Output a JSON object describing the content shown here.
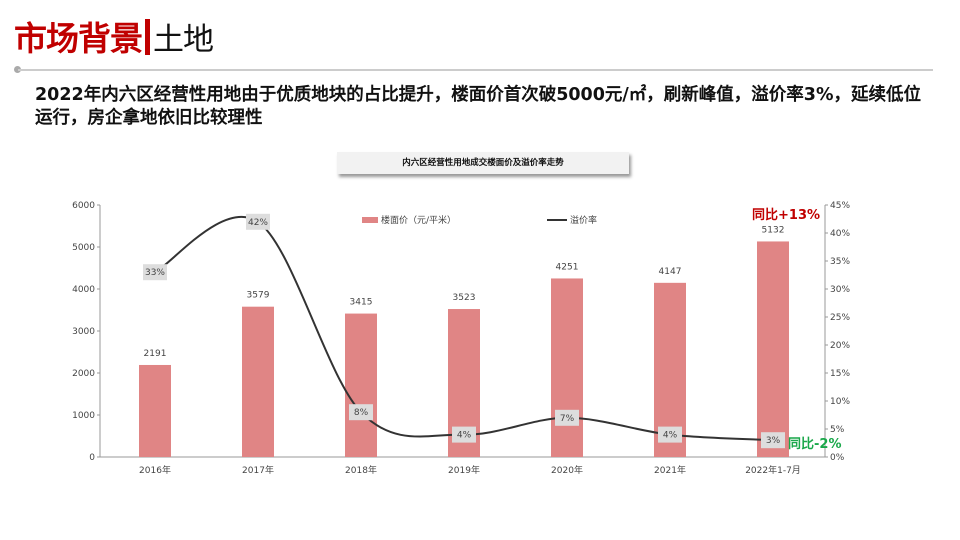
{
  "header": {
    "title": "市场背景",
    "subtitle": "土地"
  },
  "headline": "2022年内六区经营性用地由于优质地块的占比提升，楼面价首次破5000元/㎡，刷新峰值，溢价率3%，延续低位运行，房企拿地依旧比较理性",
  "chart_data": {
    "type": "bar+line",
    "title": "内六区经营性用地成交楼面价及溢价率走势",
    "categories": [
      "2016年",
      "2017年",
      "2018年",
      "2019年",
      "2020年",
      "2021年",
      "2022年1-7月"
    ],
    "series": [
      {
        "name": "楼面价（元/平米）",
        "type": "bar",
        "axis": "left",
        "values": [
          2191,
          3579,
          3415,
          3523,
          4251,
          4147,
          5132
        ],
        "color": "#e08585"
      },
      {
        "name": "溢价率",
        "type": "line",
        "axis": "right",
        "values": [
          33,
          42,
          8,
          4,
          7,
          4,
          3
        ],
        "labels": [
          "33%",
          "42%",
          "8%",
          "4%",
          "7%",
          "4%",
          "3%"
        ],
        "color": "#333333"
      }
    ],
    "left_axis": {
      "range": [
        0,
        6000
      ],
      "ticks": [
        0,
        1000,
        2000,
        3000,
        4000,
        5000,
        6000
      ]
    },
    "right_axis": {
      "range": [
        0,
        45
      ],
      "ticks": [
        "0%",
        "5%",
        "10%",
        "15%",
        "20%",
        "25%",
        "30%",
        "35%",
        "40%",
        "45%"
      ]
    },
    "legend_placement": "top",
    "annotations": [
      {
        "text": "同比+13%",
        "color": "#c00000"
      },
      {
        "text": "同比-2%",
        "color": "#1aa84a"
      }
    ]
  }
}
